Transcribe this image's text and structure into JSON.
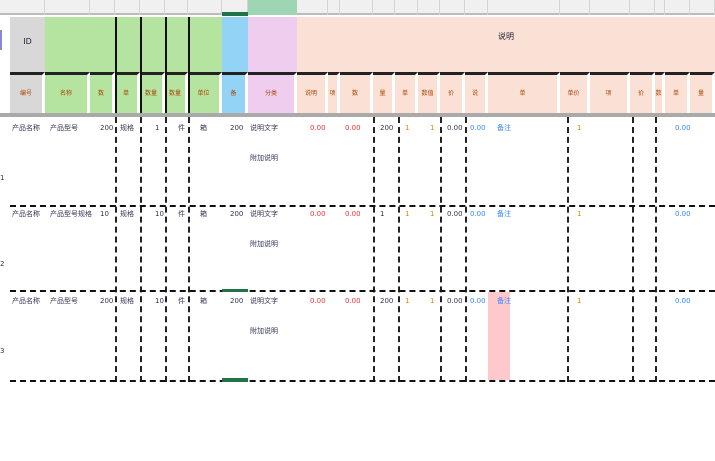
{
  "header": {
    "group_id": "ID",
    "group_main": "",
    "group_right": "说明",
    "subheaders": [
      "编号",
      "名称",
      "数",
      "单",
      "数量",
      "数量",
      "单位",
      "备",
      "分类",
      "说明",
      "项目",
      "数",
      "量",
      "单",
      "数值",
      "价",
      "说",
      "单",
      "单价",
      "项",
      "价",
      "数",
      "单",
      "量"
    ]
  },
  "rows": [
    {
      "num": "1",
      "c1": "产品名称",
      "c2": "产品型号",
      "c3": "200",
      "c4": "规格",
      "c5": "1",
      "c6": "件",
      "c7": "箱",
      "c8": "200",
      "c9": "说明文字",
      "c9b": "附加说明",
      "c10": "0.00",
      "c11": "0.00",
      "c12": "200",
      "c13": "1",
      "c14": "1",
      "c15": "0.00",
      "c16": "0.00",
      "c17": "备注",
      "c18": "1",
      "c19": "0.00"
    },
    {
      "num": "2",
      "c1": "产品名称",
      "c2": "产品型号规格",
      "c3": "10",
      "c4": "规格",
      "c5": "10",
      "c6": "件",
      "c7": "箱",
      "c8": "200",
      "c9": "说明文字",
      "c9b": "附加说明",
      "c10": "0.00",
      "c11": "0.00",
      "c12": "1",
      "c13": "1",
      "c14": "1",
      "c15": "0.00",
      "c16": "0.00",
      "c17": "备注",
      "c18": "1",
      "c19": "0.00"
    },
    {
      "num": "3",
      "c1": "产品名称",
      "c2": "产品型号",
      "c3": "200",
      "c4": "规格",
      "c5": "10",
      "c6": "件",
      "c7": "箱",
      "c8": "200",
      "c9": "说明文字",
      "c9b": "附加说明",
      "c10": "0.00",
      "c11": "0.00",
      "c12": "200",
      "c13": "1",
      "c14": "1",
      "c15": "0.00",
      "c16": "0.00",
      "c17": "备注",
      "c18": "1",
      "c19": "0.00"
    }
  ],
  "colors": {
    "green": "#b5e3a0",
    "blue": "#93d3f5",
    "pink": "#efcdee",
    "peach": "#fbe0d5",
    "gray": "#d8d8d8",
    "highlight": "#ffc8cc",
    "selected": "#217346"
  }
}
